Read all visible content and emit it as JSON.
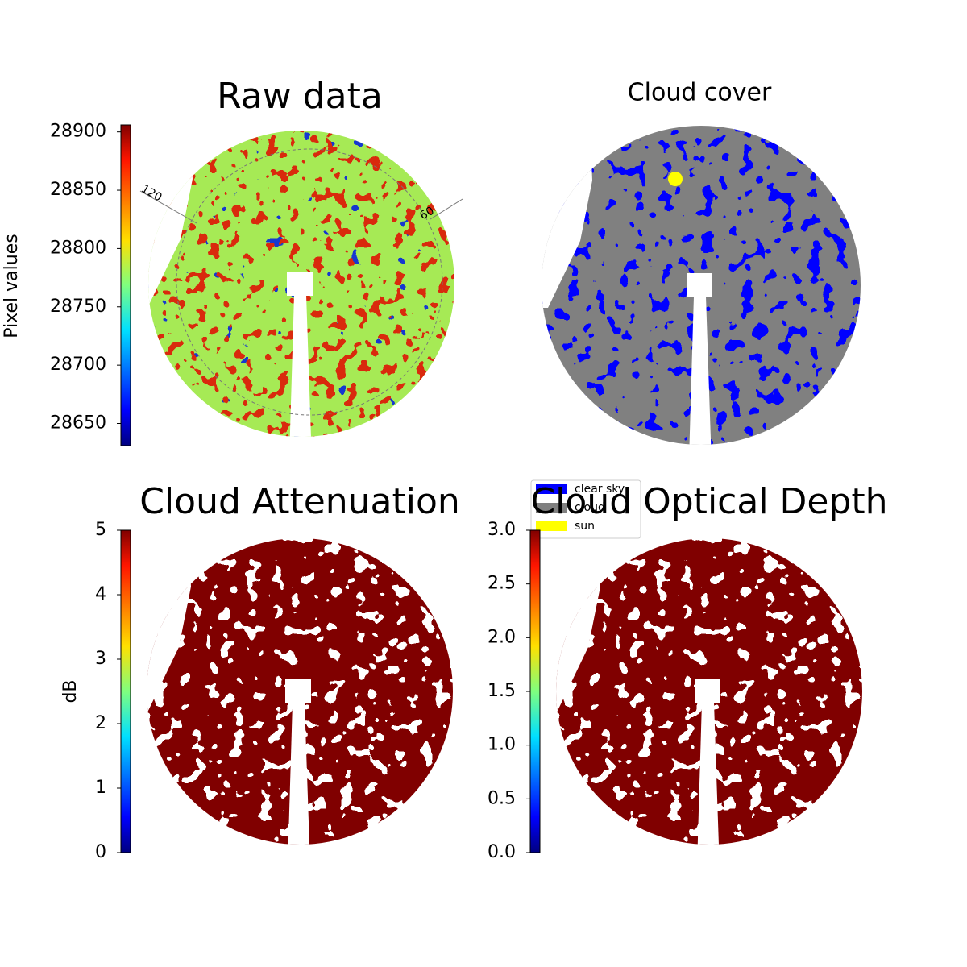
{
  "chart_data": [
    {
      "type": "image",
      "title": "Raw data",
      "colorbar": {
        "label": "Pixel values",
        "lim": [
          28631,
          28906
        ],
        "ticks": [
          28650,
          28700,
          28750,
          28800,
          28850,
          28900
        ]
      },
      "annotations": [
        "120",
        "60"
      ]
    },
    {
      "type": "image",
      "title": "Cloud cover",
      "series": [
        {
          "name": "clear sky",
          "color": "#0000ff"
        },
        {
          "name": "cloud",
          "color": "#808080"
        },
        {
          "name": "sun",
          "color": "#ffff00"
        }
      ]
    },
    {
      "type": "image",
      "title": "Cloud Attenuation",
      "colorbar": {
        "label": "dB",
        "lim": [
          0,
          5
        ],
        "ticks": [
          0,
          1,
          2,
          3,
          4,
          5
        ]
      }
    },
    {
      "type": "image",
      "title": "Cloud Optical Depth",
      "colorbar": {
        "lim": [
          0,
          3
        ],
        "ticks": [
          {
            "value": 0,
            "label": "0.0"
          },
          {
            "value": 0.5,
            "label": "0.5"
          },
          {
            "value": 1,
            "label": "1.0"
          },
          {
            "value": 1.5,
            "label": "1.5"
          },
          {
            "value": 2,
            "label": "2.0"
          },
          {
            "value": 2.5,
            "label": "2.5"
          },
          {
            "value": 3,
            "label": "3.0"
          }
        ]
      }
    }
  ]
}
